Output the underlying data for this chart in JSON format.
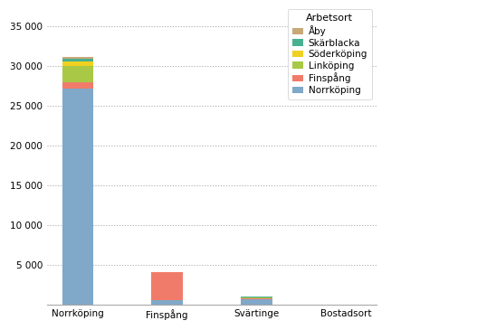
{
  "categories": [
    "Norrköping",
    "Finspång",
    "Svärtinge",
    "Bostadsort"
  ],
  "series": {
    "Norrköping": [
      27200,
      550,
      700,
      0
    ],
    "Finspång": [
      750,
      3500,
      80,
      0
    ],
    "Linköping": [
      2100,
      0,
      150,
      0
    ],
    "Söderköping": [
      550,
      0,
      40,
      0
    ],
    "Skärblacka": [
      350,
      0,
      20,
      0
    ],
    "Åby": [
      150,
      0,
      10,
      0
    ]
  },
  "colors": {
    "Norrköping": "#7fa8c9",
    "Finspång": "#f07b6a",
    "Linköping": "#a8c846",
    "Söderköping": "#f0d020",
    "Skärblacka": "#48b090",
    "Åby": "#c8a878"
  },
  "legend_title": "Arbetsort",
  "legend_order": [
    "Åby",
    "Skärblacka",
    "Söderköping",
    "Linköping",
    "Finspång",
    "Norrköping"
  ],
  "ylim": [
    0,
    37000
  ],
  "yticks": [
    0,
    5000,
    10000,
    15000,
    20000,
    25000,
    30000,
    35000
  ],
  "ytick_labels": [
    "",
    "5 000",
    "10 000",
    "15 000",
    "20 000",
    "25 000",
    "30 000",
    "35 000"
  ],
  "background_color": "#ffffff",
  "grid_color": "#aaaaaa",
  "figsize": [
    5.48,
    3.65
  ],
  "dpi": 100
}
